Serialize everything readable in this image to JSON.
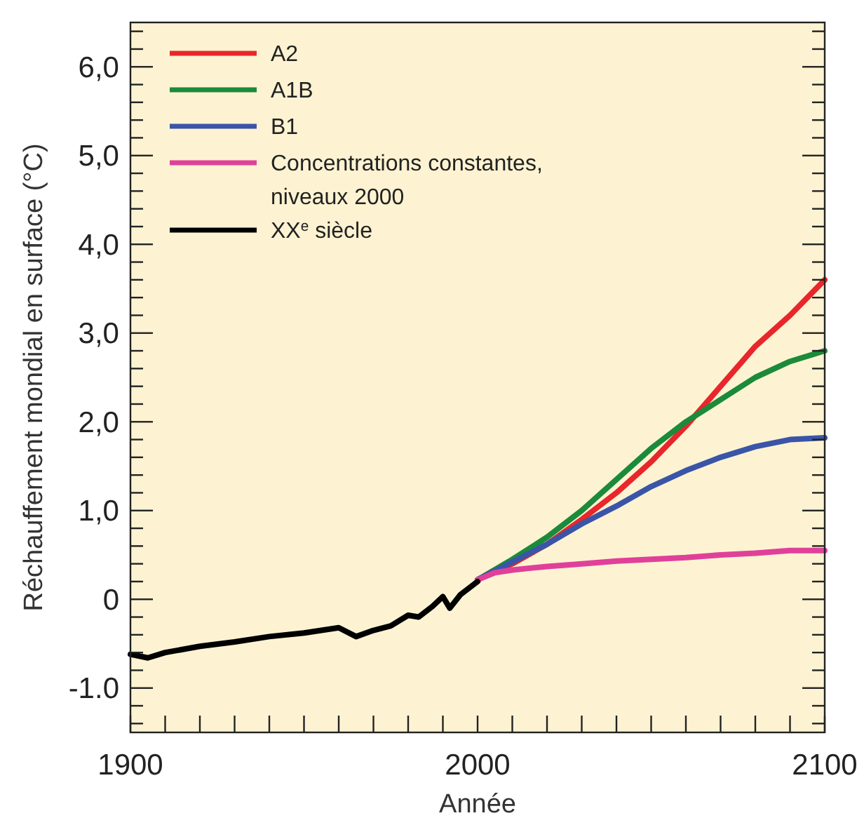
{
  "chart_data": {
    "type": "line",
    "xlabel": "Année",
    "ylabel": "Réchauffement mondial en surface (°C)",
    "legend": "top left",
    "grid": false,
    "line_style": "solid",
    "xlim": [
      1900,
      2100
    ],
    "xticks": [
      1900,
      {
        "value": 1910,
        "label": null
      },
      {
        "value": 1920,
        "label": null
      },
      {
        "value": 1930,
        "label": null
      },
      {
        "value": 1940,
        "label": null
      },
      {
        "value": 1950,
        "label": null
      },
      {
        "value": 1960,
        "label": null
      },
      {
        "value": 1970,
        "label": null
      },
      {
        "value": 1980,
        "label": null
      },
      {
        "value": 1990,
        "label": null
      },
      2000,
      {
        "value": 2010,
        "label": null
      },
      {
        "value": 2020,
        "label": null
      },
      {
        "value": 2030,
        "label": null
      },
      {
        "value": 2040,
        "label": null
      },
      {
        "value": 2050,
        "label": null
      },
      {
        "value": 2060,
        "label": null
      },
      {
        "value": 2070,
        "label": null
      },
      {
        "value": 2080,
        "label": null
      },
      {
        "value": 2090,
        "label": null
      },
      2100
    ],
    "ylim": [
      -1.5,
      6.5
    ],
    "yticks": [
      {
        "value": -1.4,
        "label": null
      },
      {
        "value": -1.2,
        "label": null
      },
      {
        "value": -1,
        "label": "-1.0"
      },
      {
        "value": -0.8,
        "label": null
      },
      {
        "value": -0.6,
        "label": null
      },
      {
        "value": -0.4,
        "label": null
      },
      {
        "value": -0.2,
        "label": null
      },
      0,
      {
        "value": 0.2,
        "label": null
      },
      {
        "value": 0.4,
        "label": null
      },
      {
        "value": 0.6,
        "label": null
      },
      {
        "value": 0.8,
        "label": null
      },
      {
        "value": 1,
        "label": "1,0"
      },
      {
        "value": 1.2,
        "label": null
      },
      {
        "value": 1.4,
        "label": null
      },
      {
        "value": 1.6,
        "label": null
      },
      {
        "value": 1.8,
        "label": null
      },
      {
        "value": 2,
        "label": "2,0"
      },
      {
        "value": 2.2,
        "label": null
      },
      {
        "value": 2.4,
        "label": null
      },
      {
        "value": 2.6,
        "label": null
      },
      {
        "value": 2.8,
        "label": null
      },
      {
        "value": 3,
        "label": "3,0"
      },
      {
        "value": 3.2,
        "label": null
      },
      {
        "value": 3.4,
        "label": null
      },
      {
        "value": 3.6,
        "label": null
      },
      {
        "value": 3.8,
        "label": null
      },
      {
        "value": 4,
        "label": "4,0"
      },
      {
        "value": 4.2,
        "label": null
      },
      {
        "value": 4.4,
        "label": null
      },
      {
        "value": 4.6,
        "label": null
      },
      {
        "value": 4.8,
        "label": null
      },
      {
        "value": 5,
        "label": "5,0"
      },
      {
        "value": 5.2,
        "label": null
      },
      {
        "value": 5.4,
        "label": null
      },
      {
        "value": 5.6,
        "label": null
      },
      {
        "value": 5.8,
        "label": null
      },
      {
        "value": 6,
        "label": "6,0"
      },
      {
        "value": 6.2,
        "label": null
      },
      {
        "value": 6.4,
        "label": null
      }
    ],
    "series": [
      {
        "name": "A2",
        "color": "#e8262b",
        "x": [
          2000,
          2010,
          2020,
          2030,
          2040,
          2050,
          2060,
          2070,
          2080,
          2090,
          2100
        ],
        "values": [
          0.22,
          0.4,
          0.62,
          0.9,
          1.2,
          1.55,
          1.95,
          2.4,
          2.85,
          3.2,
          3.6
        ]
      },
      {
        "name": "A1B",
        "color": "#1b8a3a",
        "x": [
          2000,
          2010,
          2020,
          2030,
          2040,
          2050,
          2060,
          2070,
          2080,
          2090,
          2100
        ],
        "values": [
          0.22,
          0.45,
          0.7,
          1.0,
          1.35,
          1.7,
          2.0,
          2.25,
          2.5,
          2.68,
          2.8
        ]
      },
      {
        "name": "B1",
        "color": "#3a55a8",
        "x": [
          2000,
          2010,
          2020,
          2030,
          2040,
          2050,
          2060,
          2070,
          2080,
          2090,
          2100
        ],
        "values": [
          0.22,
          0.42,
          0.62,
          0.85,
          1.05,
          1.27,
          1.45,
          1.6,
          1.72,
          1.8,
          1.82
        ]
      },
      {
        "name": "Concentrations constantes, niveaux 2000",
        "color": "#e0409a",
        "x": [
          2000,
          2005,
          2010,
          2020,
          2030,
          2040,
          2050,
          2060,
          2070,
          2080,
          2090,
          2100
        ],
        "values": [
          0.22,
          0.3,
          0.33,
          0.37,
          0.4,
          0.43,
          0.45,
          0.47,
          0.5,
          0.52,
          0.55,
          0.55
        ]
      },
      {
        "name": "XX$^{e}$ siècle",
        "color": "#000000",
        "x": [
          1900,
          1905,
          1910,
          1920,
          1930,
          1940,
          1950,
          1960,
          1965,
          1970,
          1975,
          1980,
          1983,
          1987,
          1990,
          1992,
          1995,
          2000
        ],
        "values": [
          -0.62,
          -0.66,
          -0.6,
          -0.53,
          -0.48,
          -0.42,
          -0.38,
          -0.32,
          -0.42,
          -0.35,
          -0.3,
          -0.18,
          -0.2,
          -0.08,
          0.03,
          -0.1,
          0.05,
          0.2
        ]
      }
    ]
  }
}
